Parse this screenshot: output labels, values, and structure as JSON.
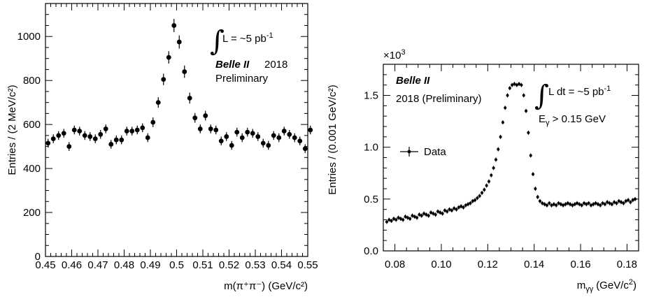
{
  "chart_data": [
    {
      "type": "scatter",
      "xlabel": "m(π⁺π⁻) (GeV/c²)",
      "ylabel": "Entries / (2 MeV/c²)",
      "xlim": [
        0.45,
        0.55
      ],
      "ylim": [
        0,
        1150
      ],
      "xticks": [
        "0.45",
        "0.46",
        "0.47",
        "0.48",
        "0.49",
        "0.5",
        "0.51",
        "0.52",
        "0.53",
        "0.54",
        "0.55"
      ],
      "yticks": [
        "0",
        "200",
        "400",
        "600",
        "800",
        "1000"
      ],
      "grid": false,
      "annotations": {
        "integral": "L = ~5 pb",
        "integral_exp": "-1",
        "experiment": "Belle II",
        "year": "2018",
        "status": "Preliminary"
      },
      "points": [
        {
          "x": 0.451,
          "y": 515,
          "e": 20
        },
        {
          "x": 0.453,
          "y": 535,
          "e": 20
        },
        {
          "x": 0.455,
          "y": 550,
          "e": 20
        },
        {
          "x": 0.457,
          "y": 560,
          "e": 20
        },
        {
          "x": 0.459,
          "y": 500,
          "e": 20
        },
        {
          "x": 0.461,
          "y": 575,
          "e": 20
        },
        {
          "x": 0.463,
          "y": 570,
          "e": 20
        },
        {
          "x": 0.465,
          "y": 550,
          "e": 20
        },
        {
          "x": 0.467,
          "y": 545,
          "e": 20
        },
        {
          "x": 0.469,
          "y": 535,
          "e": 20
        },
        {
          "x": 0.471,
          "y": 555,
          "e": 20
        },
        {
          "x": 0.473,
          "y": 580,
          "e": 20
        },
        {
          "x": 0.475,
          "y": 510,
          "e": 20
        },
        {
          "x": 0.477,
          "y": 530,
          "e": 20
        },
        {
          "x": 0.479,
          "y": 530,
          "e": 20
        },
        {
          "x": 0.481,
          "y": 570,
          "e": 20
        },
        {
          "x": 0.483,
          "y": 570,
          "e": 20
        },
        {
          "x": 0.485,
          "y": 575,
          "e": 20
        },
        {
          "x": 0.487,
          "y": 585,
          "e": 20
        },
        {
          "x": 0.489,
          "y": 540,
          "e": 20
        },
        {
          "x": 0.491,
          "y": 610,
          "e": 22
        },
        {
          "x": 0.493,
          "y": 700,
          "e": 24
        },
        {
          "x": 0.495,
          "y": 805,
          "e": 26
        },
        {
          "x": 0.497,
          "y": 905,
          "e": 28
        },
        {
          "x": 0.499,
          "y": 1050,
          "e": 30
        },
        {
          "x": 0.501,
          "y": 975,
          "e": 30
        },
        {
          "x": 0.503,
          "y": 840,
          "e": 28
        },
        {
          "x": 0.505,
          "y": 720,
          "e": 25
        },
        {
          "x": 0.507,
          "y": 630,
          "e": 22
        },
        {
          "x": 0.509,
          "y": 580,
          "e": 20
        },
        {
          "x": 0.511,
          "y": 640,
          "e": 22
        },
        {
          "x": 0.513,
          "y": 580,
          "e": 20
        },
        {
          "x": 0.515,
          "y": 575,
          "e": 20
        },
        {
          "x": 0.517,
          "y": 525,
          "e": 20
        },
        {
          "x": 0.519,
          "y": 545,
          "e": 20
        },
        {
          "x": 0.521,
          "y": 505,
          "e": 20
        },
        {
          "x": 0.523,
          "y": 565,
          "e": 20
        },
        {
          "x": 0.525,
          "y": 540,
          "e": 20
        },
        {
          "x": 0.527,
          "y": 565,
          "e": 20
        },
        {
          "x": 0.529,
          "y": 560,
          "e": 20
        },
        {
          "x": 0.531,
          "y": 545,
          "e": 20
        },
        {
          "x": 0.533,
          "y": 515,
          "e": 20
        },
        {
          "x": 0.535,
          "y": 505,
          "e": 20
        },
        {
          "x": 0.537,
          "y": 550,
          "e": 20
        },
        {
          "x": 0.539,
          "y": 540,
          "e": 20
        },
        {
          "x": 0.541,
          "y": 570,
          "e": 20
        },
        {
          "x": 0.543,
          "y": 555,
          "e": 20
        },
        {
          "x": 0.545,
          "y": 540,
          "e": 20
        },
        {
          "x": 0.547,
          "y": 525,
          "e": 20
        },
        {
          "x": 0.549,
          "y": 490,
          "e": 20
        },
        {
          "x": 0.551,
          "y": 575,
          "e": 20
        }
      ]
    },
    {
      "type": "scatter",
      "xlabel": "m",
      "xlabel_sub": "γγ",
      "xlabel_unit": "(GeV/c",
      "ylabel": "Entries / (0.001 GeV/c²)",
      "multiplier": "×10",
      "multiplier_exp": "3",
      "xlim": [
        0.075,
        0.185
      ],
      "ylim": [
        0,
        1.8
      ],
      "xticks": [
        "0.08",
        "0.10",
        "0.12",
        "0.14",
        "0.16",
        "0.18"
      ],
      "xtick_values": [
        0.08,
        0.1,
        0.12,
        0.14,
        0.16,
        0.18
      ],
      "yticks": [
        "0.0",
        "0.5",
        "1.0",
        "1.5"
      ],
      "ytick_values": [
        0.0,
        0.5,
        1.0,
        1.5
      ],
      "grid": false,
      "legend": {
        "label": "Data",
        "placement": "left"
      },
      "annotations": {
        "experiment": "Belle II",
        "year": "2018 (Preliminary)",
        "integral": "L dt = ~5 pb",
        "integral_exp": "-1",
        "cut": "E",
        "cut_sub": "γ",
        "cut_rest": " > 0.15 GeV"
      },
      "points": [
        {
          "x": 0.0765,
          "y": 0.28
        },
        {
          "x": 0.0775,
          "y": 0.3
        },
        {
          "x": 0.0785,
          "y": 0.29
        },
        {
          "x": 0.0795,
          "y": 0.31
        },
        {
          "x": 0.0805,
          "y": 0.3
        },
        {
          "x": 0.0815,
          "y": 0.32
        },
        {
          "x": 0.0825,
          "y": 0.31
        },
        {
          "x": 0.0835,
          "y": 0.3
        },
        {
          "x": 0.0845,
          "y": 0.33
        },
        {
          "x": 0.0855,
          "y": 0.32
        },
        {
          "x": 0.0865,
          "y": 0.31
        },
        {
          "x": 0.0875,
          "y": 0.34
        },
        {
          "x": 0.0885,
          "y": 0.33
        },
        {
          "x": 0.0895,
          "y": 0.32
        },
        {
          "x": 0.0905,
          "y": 0.35
        },
        {
          "x": 0.0915,
          "y": 0.34
        },
        {
          "x": 0.0925,
          "y": 0.36
        },
        {
          "x": 0.0935,
          "y": 0.35
        },
        {
          "x": 0.0945,
          "y": 0.34
        },
        {
          "x": 0.0955,
          "y": 0.37
        },
        {
          "x": 0.0965,
          "y": 0.36
        },
        {
          "x": 0.0975,
          "y": 0.35
        },
        {
          "x": 0.0985,
          "y": 0.38
        },
        {
          "x": 0.0995,
          "y": 0.37
        },
        {
          "x": 0.1005,
          "y": 0.36
        },
        {
          "x": 0.1015,
          "y": 0.39
        },
        {
          "x": 0.1025,
          "y": 0.38
        },
        {
          "x": 0.1035,
          "y": 0.4
        },
        {
          "x": 0.1045,
          "y": 0.39
        },
        {
          "x": 0.1055,
          "y": 0.41
        },
        {
          "x": 0.1065,
          "y": 0.4
        },
        {
          "x": 0.1075,
          "y": 0.42
        },
        {
          "x": 0.1085,
          "y": 0.43
        },
        {
          "x": 0.1095,
          "y": 0.42
        },
        {
          "x": 0.1105,
          "y": 0.44
        },
        {
          "x": 0.1115,
          "y": 0.45
        },
        {
          "x": 0.1125,
          "y": 0.46
        },
        {
          "x": 0.1135,
          "y": 0.48
        },
        {
          "x": 0.1145,
          "y": 0.49
        },
        {
          "x": 0.1155,
          "y": 0.51
        },
        {
          "x": 0.1165,
          "y": 0.53
        },
        {
          "x": 0.1175,
          "y": 0.56
        },
        {
          "x": 0.1185,
          "y": 0.59
        },
        {
          "x": 0.1195,
          "y": 0.63
        },
        {
          "x": 0.1205,
          "y": 0.67
        },
        {
          "x": 0.1215,
          "y": 0.73
        },
        {
          "x": 0.1225,
          "y": 0.8
        },
        {
          "x": 0.1235,
          "y": 0.88
        },
        {
          "x": 0.1245,
          "y": 0.98
        },
        {
          "x": 0.1255,
          "y": 1.1
        },
        {
          "x": 0.1265,
          "y": 1.24
        },
        {
          "x": 0.1275,
          "y": 1.38
        },
        {
          "x": 0.1285,
          "y": 1.5
        },
        {
          "x": 0.1295,
          "y": 1.57
        },
        {
          "x": 0.1305,
          "y": 1.6
        },
        {
          "x": 0.1315,
          "y": 1.61
        },
        {
          "x": 0.1325,
          "y": 1.6
        },
        {
          "x": 0.1335,
          "y": 1.61
        },
        {
          "x": 0.1345,
          "y": 1.6
        },
        {
          "x": 0.1355,
          "y": 1.5
        },
        {
          "x": 0.1365,
          "y": 1.35
        },
        {
          "x": 0.1375,
          "y": 1.14
        },
        {
          "x": 0.1385,
          "y": 0.92
        },
        {
          "x": 0.1395,
          "y": 0.74
        },
        {
          "x": 0.1405,
          "y": 0.6
        },
        {
          "x": 0.1415,
          "y": 0.52
        },
        {
          "x": 0.1425,
          "y": 0.48
        },
        {
          "x": 0.1435,
          "y": 0.46
        },
        {
          "x": 0.1445,
          "y": 0.45
        },
        {
          "x": 0.1455,
          "y": 0.44
        },
        {
          "x": 0.1465,
          "y": 0.46
        },
        {
          "x": 0.1475,
          "y": 0.44
        },
        {
          "x": 0.1485,
          "y": 0.45
        },
        {
          "x": 0.1495,
          "y": 0.44
        },
        {
          "x": 0.1505,
          "y": 0.46
        },
        {
          "x": 0.1515,
          "y": 0.45
        },
        {
          "x": 0.1525,
          "y": 0.44
        },
        {
          "x": 0.1535,
          "y": 0.45
        },
        {
          "x": 0.1545,
          "y": 0.46
        },
        {
          "x": 0.1555,
          "y": 0.45
        },
        {
          "x": 0.1565,
          "y": 0.44
        },
        {
          "x": 0.1575,
          "y": 0.45
        },
        {
          "x": 0.1585,
          "y": 0.46
        },
        {
          "x": 0.1595,
          "y": 0.45
        },
        {
          "x": 0.1605,
          "y": 0.44
        },
        {
          "x": 0.1615,
          "y": 0.46
        },
        {
          "x": 0.1625,
          "y": 0.45
        },
        {
          "x": 0.1635,
          "y": 0.46
        },
        {
          "x": 0.1645,
          "y": 0.44
        },
        {
          "x": 0.1655,
          "y": 0.45
        },
        {
          "x": 0.1665,
          "y": 0.46
        },
        {
          "x": 0.1675,
          "y": 0.45
        },
        {
          "x": 0.1685,
          "y": 0.44
        },
        {
          "x": 0.1695,
          "y": 0.46
        },
        {
          "x": 0.1705,
          "y": 0.45
        },
        {
          "x": 0.1715,
          "y": 0.47
        },
        {
          "x": 0.1725,
          "y": 0.46
        },
        {
          "x": 0.1735,
          "y": 0.45
        },
        {
          "x": 0.1745,
          "y": 0.47
        },
        {
          "x": 0.1755,
          "y": 0.46
        },
        {
          "x": 0.1765,
          "y": 0.48
        },
        {
          "x": 0.1775,
          "y": 0.47
        },
        {
          "x": 0.1785,
          "y": 0.46
        },
        {
          "x": 0.1795,
          "y": 0.48
        },
        {
          "x": 0.1805,
          "y": 0.49
        },
        {
          "x": 0.1815,
          "y": 0.47
        },
        {
          "x": 0.1825,
          "y": 0.49
        },
        {
          "x": 0.1835,
          "y": 0.5
        }
      ]
    }
  ]
}
